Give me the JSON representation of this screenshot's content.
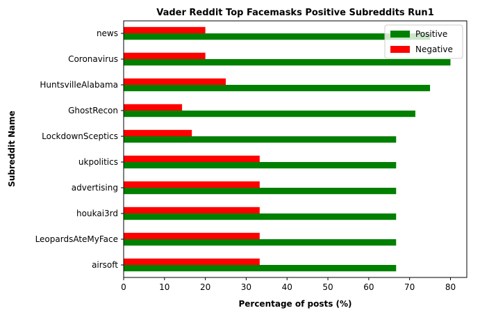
{
  "chart_data": {
    "type": "bar",
    "orientation": "horizontal",
    "title": "Vader Reddit Top Facemasks Positive Subreddits Run1",
    "xlabel": "Percentage of posts (%)",
    "ylabel": "Subreddit Name",
    "xlim": [
      0,
      84
    ],
    "xticks": [
      0,
      10,
      20,
      30,
      40,
      50,
      60,
      70,
      80
    ],
    "categories": [
      "news",
      "Coronavirus",
      "HuntsvilleAlabama",
      "GhostRecon",
      "LockdownSceptics",
      "ukpolitics",
      "advertising",
      "houkai3rd",
      "LeopardsAteMyFace",
      "airsoft"
    ],
    "series": [
      {
        "name": "Positive",
        "color": "#008000",
        "values": [
          75,
          80,
          75,
          71.4,
          66.7,
          66.7,
          66.7,
          66.7,
          66.7,
          66.7
        ]
      },
      {
        "name": "Negative",
        "color": "#ff0000",
        "values": [
          20,
          20,
          25,
          14.3,
          16.7,
          33.3,
          33.3,
          33.3,
          33.3,
          33.3
        ]
      }
    ],
    "legend_position": "top-right",
    "grid": false
  }
}
